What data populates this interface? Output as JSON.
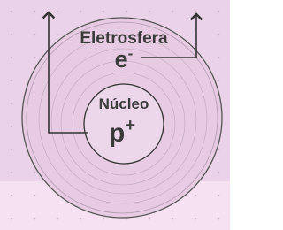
{
  "diagram": {
    "electrosphere": {
      "label": "Eletrosfera",
      "symbol": "e",
      "charge": "-"
    },
    "nucleus": {
      "label": "Núcleo",
      "symbol": "p",
      "charge": "+"
    }
  }
}
